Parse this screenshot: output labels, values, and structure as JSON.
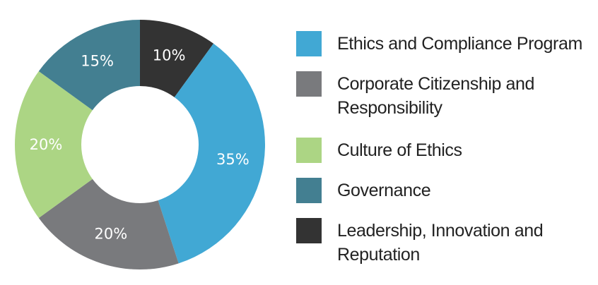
{
  "chart_data": {
    "type": "pie",
    "title": "",
    "donut": true,
    "legend_position": "right",
    "slice_order": "clockwise from top, starting at 10% slice",
    "slices": [
      {
        "label": "Leadership, Innovation and Reputation",
        "value": 10,
        "display": "10%",
        "color": "#333333"
      },
      {
        "label": "Ethics and Compliance Program",
        "value": 35,
        "display": "35%",
        "color": "#41a8d4"
      },
      {
        "label": "Corporate Citizenship and Responsibility",
        "value": 20,
        "display": "20%",
        "color": "#797a7d"
      },
      {
        "label": "Culture of Ethics",
        "value": 20,
        "display": "20%",
        "color": "#acd584"
      },
      {
        "label": "Governance",
        "value": 15,
        "display": "15%",
        "color": "#437f91"
      }
    ]
  },
  "legend": {
    "items": [
      {
        "lines": [
          "Ethics and Compliance Program"
        ],
        "color": "#41a8d4"
      },
      {
        "lines": [
          "Corporate Citizenship and",
          "Responsibility"
        ],
        "color": "#797a7d"
      },
      {
        "lines": [
          "Culture of Ethics"
        ],
        "color": "#acd584"
      },
      {
        "lines": [
          "Governance"
        ],
        "color": "#437f91"
      },
      {
        "lines": [
          "Leadership, Innovation and",
          "Reputation"
        ],
        "color": "#333333"
      }
    ]
  }
}
